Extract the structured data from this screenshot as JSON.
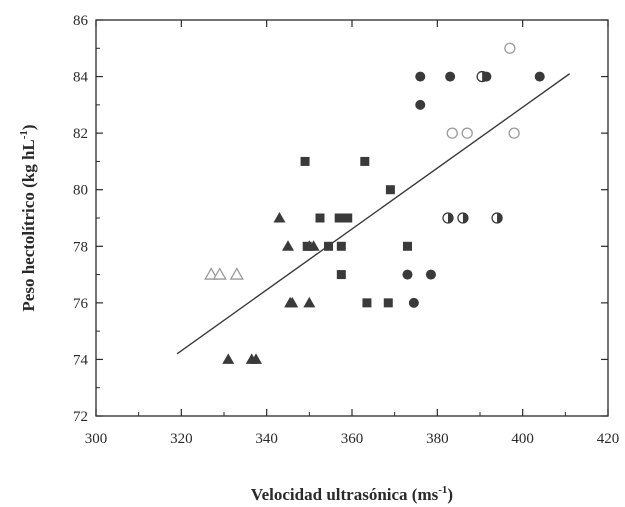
{
  "chart_data": {
    "type": "scatter",
    "title": "",
    "xlabel": "Velocidad ultrasónica (ms",
    "xlabel_sup": "-1",
    "xlabel_end": ")",
    "ylabel": "Peso hectolítrico (kg hL",
    "ylabel_sup": "-1",
    "ylabel_end": ")",
    "xlim": [
      300,
      420
    ],
    "ylim": [
      72,
      86
    ],
    "xticks": [
      300,
      320,
      340,
      360,
      380,
      400,
      420
    ],
    "yticks": [
      72,
      74,
      76,
      78,
      80,
      82,
      84,
      86
    ],
    "grid": false,
    "legend": "none",
    "colors": {
      "marker": "#3a3a3a",
      "open": "#9a9a9a",
      "axis": "#2a2a2a"
    },
    "series": [
      {
        "marker": "filled-triangle",
        "x": [
          343,
          345,
          345.5,
          346,
          350,
          350,
          351,
          331,
          336.5,
          337.5
        ],
        "y": [
          79,
          78,
          76,
          76,
          78,
          76,
          78,
          74,
          74,
          74
        ]
      },
      {
        "marker": "open-triangle",
        "x": [
          327,
          329,
          333
        ],
        "y": [
          77,
          77,
          77
        ]
      },
      {
        "marker": "filled-square",
        "x": [
          349,
          363,
          369,
          352.5,
          357,
          358,
          359,
          349.5,
          354.5,
          357.5,
          373,
          357.5,
          363.5,
          368.5
        ],
        "y": [
          81,
          81,
          80,
          79,
          79,
          79,
          79,
          78,
          78,
          78,
          78,
          77,
          76,
          76
        ]
      },
      {
        "marker": "filled-circle",
        "x": [
          376,
          383,
          391.5,
          404,
          376,
          373,
          378.5,
          374.5
        ],
        "y": [
          84,
          84,
          84,
          84,
          83,
          77,
          77,
          76
        ]
      },
      {
        "marker": "open-circle",
        "x": [
          397,
          383.5,
          387,
          398
        ],
        "y": [
          85,
          82,
          82,
          82
        ]
      },
      {
        "marker": "half-circle",
        "x": [
          390.5,
          382.5,
          386,
          394
        ],
        "y": [
          84,
          79,
          79,
          79
        ]
      }
    ],
    "trendline": {
      "x": [
        319,
        411
      ],
      "y": [
        74.2,
        84.1
      ]
    }
  }
}
